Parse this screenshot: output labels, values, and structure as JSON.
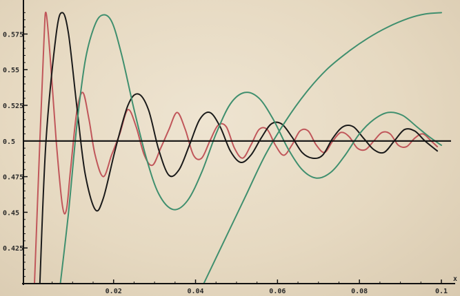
{
  "chart_data": {
    "type": "line",
    "title": "",
    "xlabel": "x",
    "ylabel": "",
    "xlim": [
      -0.002,
      0.1
    ],
    "ylim": [
      0.4,
      0.595
    ],
    "x_ticks": [
      0.02,
      0.04,
      0.06,
      0.08,
      0.1
    ],
    "x_tick_labels": [
      "0.02",
      "0.04",
      "0.06",
      "0.08",
      "0.1"
    ],
    "y_ticks": [
      0.425,
      0.45,
      0.475,
      0.5,
      0.525,
      0.55,
      0.575
    ],
    "y_tick_labels": [
      "0.425",
      "0.45",
      "0.475",
      "0.5",
      "0.525",
      "0.55",
      "0.575"
    ],
    "reference_line": {
      "y": 0.5,
      "color": "#111111"
    },
    "grid": false,
    "series": [
      {
        "color": "#c0565a",
        "points": [
          [
            0.0007,
            0.4
          ],
          [
            0.002,
            0.5
          ],
          [
            0.003,
            0.57
          ],
          [
            0.0035,
            0.59
          ],
          [
            0.0045,
            0.56
          ],
          [
            0.006,
            0.5
          ],
          [
            0.0075,
            0.455
          ],
          [
            0.0085,
            0.452
          ],
          [
            0.0095,
            0.48
          ],
          [
            0.011,
            0.52
          ],
          [
            0.0125,
            0.534
          ],
          [
            0.014,
            0.515
          ],
          [
            0.0155,
            0.49
          ],
          [
            0.0175,
            0.475
          ],
          [
            0.0195,
            0.49
          ],
          [
            0.0215,
            0.505
          ],
          [
            0.0235,
            0.522
          ],
          [
            0.0255,
            0.51
          ],
          [
            0.0275,
            0.49
          ],
          [
            0.0295,
            0.483
          ],
          [
            0.0315,
            0.495
          ],
          [
            0.0335,
            0.508
          ],
          [
            0.0355,
            0.52
          ],
          [
            0.0375,
            0.508
          ],
          [
            0.0395,
            0.49
          ],
          [
            0.0415,
            0.488
          ],
          [
            0.0435,
            0.5
          ],
          [
            0.0455,
            0.511
          ],
          [
            0.0475,
            0.51
          ],
          [
            0.0495,
            0.495
          ],
          [
            0.0515,
            0.488
          ],
          [
            0.0535,
            0.497
          ],
          [
            0.0555,
            0.508
          ],
          [
            0.0575,
            0.508
          ],
          [
            0.0595,
            0.497
          ],
          [
            0.0615,
            0.49
          ],
          [
            0.0635,
            0.497
          ],
          [
            0.0655,
            0.507
          ],
          [
            0.0675,
            0.507
          ],
          [
            0.0695,
            0.497
          ],
          [
            0.0715,
            0.492
          ],
          [
            0.0735,
            0.5
          ],
          [
            0.0755,
            0.506
          ],
          [
            0.0775,
            0.503
          ],
          [
            0.0795,
            0.495
          ],
          [
            0.0815,
            0.494
          ],
          [
            0.0835,
            0.5
          ],
          [
            0.0855,
            0.506
          ],
          [
            0.0875,
            0.505
          ],
          [
            0.0895,
            0.497
          ],
          [
            0.0915,
            0.496
          ],
          [
            0.0935,
            0.502
          ],
          [
            0.0955,
            0.505
          ],
          [
            0.0975,
            0.5
          ],
          [
            0.099,
            0.496
          ]
        ]
      },
      {
        "color": "#1a1a1a",
        "points": [
          [
            0.002,
            0.4
          ],
          [
            0.0035,
            0.5
          ],
          [
            0.006,
            0.575
          ],
          [
            0.0075,
            0.59
          ],
          [
            0.009,
            0.575
          ],
          [
            0.011,
            0.525
          ],
          [
            0.013,
            0.478
          ],
          [
            0.0155,
            0.452
          ],
          [
            0.0175,
            0.46
          ],
          [
            0.0205,
            0.495
          ],
          [
            0.0235,
            0.525
          ],
          [
            0.026,
            0.533
          ],
          [
            0.0285,
            0.522
          ],
          [
            0.031,
            0.494
          ],
          [
            0.0335,
            0.476
          ],
          [
            0.036,
            0.48
          ],
          [
            0.0385,
            0.497
          ],
          [
            0.041,
            0.515
          ],
          [
            0.0435,
            0.52
          ],
          [
            0.046,
            0.51
          ],
          [
            0.0485,
            0.493
          ],
          [
            0.051,
            0.485
          ],
          [
            0.0535,
            0.49
          ],
          [
            0.056,
            0.502
          ],
          [
            0.0585,
            0.512
          ],
          [
            0.061,
            0.512
          ],
          [
            0.0635,
            0.503
          ],
          [
            0.066,
            0.492
          ],
          [
            0.0685,
            0.488
          ],
          [
            0.071,
            0.49
          ],
          [
            0.0735,
            0.502
          ],
          [
            0.076,
            0.51
          ],
          [
            0.0785,
            0.51
          ],
          [
            0.081,
            0.502
          ],
          [
            0.0835,
            0.494
          ],
          [
            0.086,
            0.492
          ],
          [
            0.0885,
            0.5
          ],
          [
            0.091,
            0.508
          ],
          [
            0.0935,
            0.507
          ],
          [
            0.096,
            0.5
          ],
          [
            0.099,
            0.493
          ]
        ]
      },
      {
        "color": "#3f8f6e",
        "points": [
          [
            0.007,
            0.4
          ],
          [
            0.009,
            0.45
          ],
          [
            0.011,
            0.51
          ],
          [
            0.013,
            0.555
          ],
          [
            0.015,
            0.578
          ],
          [
            0.017,
            0.588
          ],
          [
            0.0195,
            0.584
          ],
          [
            0.022,
            0.56
          ],
          [
            0.025,
            0.522
          ],
          [
            0.028,
            0.488
          ],
          [
            0.031,
            0.463
          ],
          [
            0.0345,
            0.452
          ],
          [
            0.038,
            0.458
          ],
          [
            0.0415,
            0.478
          ],
          [
            0.045,
            0.505
          ],
          [
            0.0485,
            0.526
          ],
          [
            0.052,
            0.534
          ],
          [
            0.0555,
            0.53
          ],
          [
            0.059,
            0.515
          ],
          [
            0.0625,
            0.495
          ],
          [
            0.066,
            0.48
          ],
          [
            0.0695,
            0.474
          ],
          [
            0.073,
            0.478
          ],
          [
            0.0765,
            0.49
          ],
          [
            0.08,
            0.505
          ],
          [
            0.0835,
            0.515
          ],
          [
            0.087,
            0.52
          ],
          [
            0.0905,
            0.518
          ],
          [
            0.094,
            0.51
          ],
          [
            0.097,
            0.503
          ],
          [
            0.1,
            0.497
          ]
        ]
      },
      {
        "color": "#3f8f6e",
        "points": [
          [
            0.042,
            0.4
          ],
          [
            0.047,
            0.43
          ],
          [
            0.052,
            0.46
          ],
          [
            0.057,
            0.49
          ],
          [
            0.062,
            0.514
          ],
          [
            0.067,
            0.534
          ],
          [
            0.072,
            0.55
          ],
          [
            0.077,
            0.562
          ],
          [
            0.082,
            0.572
          ],
          [
            0.087,
            0.58
          ],
          [
            0.092,
            0.586
          ],
          [
            0.096,
            0.589
          ],
          [
            0.1,
            0.59
          ]
        ]
      }
    ]
  }
}
